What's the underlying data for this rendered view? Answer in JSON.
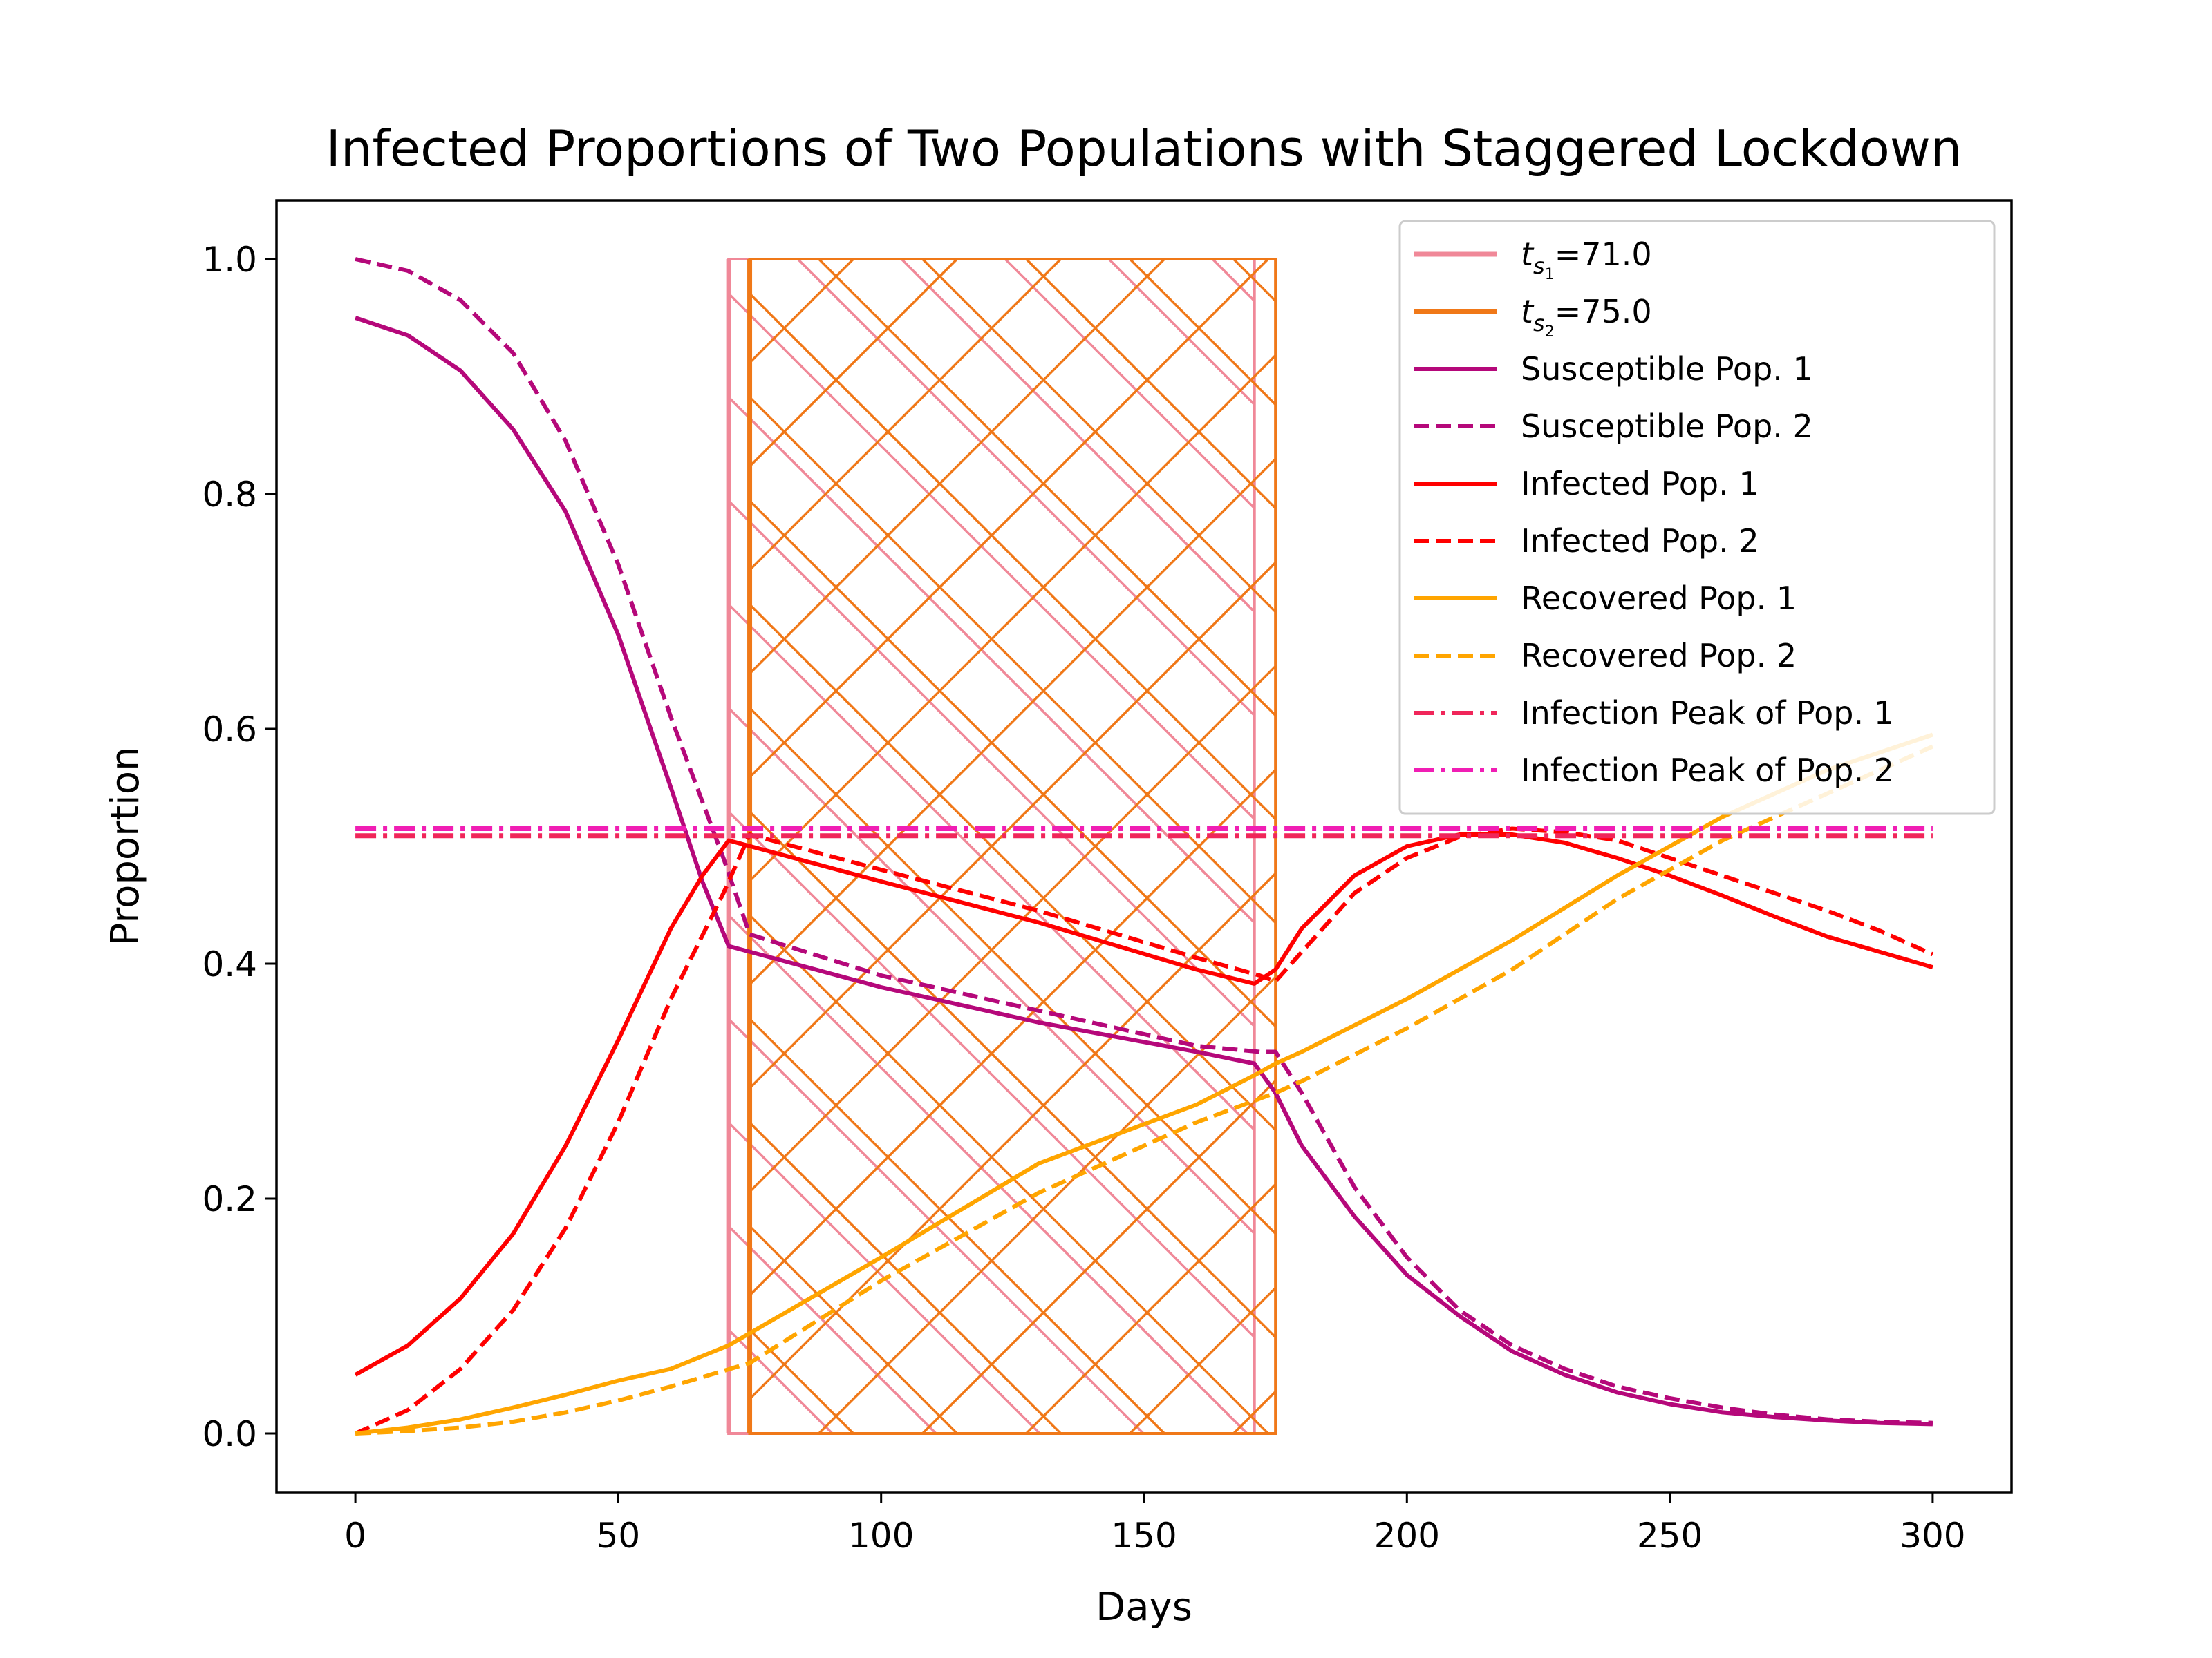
{
  "chart_data": {
    "type": "line",
    "title": "Infected Proportions of Two Populations with Staggered Lockdown",
    "xlabel": "Days",
    "ylabel": "Proportion",
    "xlim": [
      -15,
      315
    ],
    "ylim": [
      -0.05,
      1.05
    ],
    "xticks": [
      0,
      50,
      100,
      150,
      200,
      250,
      300
    ],
    "yticks": [
      0.0,
      0.2,
      0.4,
      0.6,
      0.8,
      1.0
    ],
    "grid": false,
    "legend_position": "top-right",
    "lockdowns": [
      {
        "label_base": "t",
        "label_sub": "s",
        "label_subsub": "1",
        "label_value": "=71.0",
        "start": 71,
        "end": 171,
        "color": "#f08898",
        "hatch": "diagonal-down"
      },
      {
        "label_base": "t",
        "label_sub": "s",
        "label_subsub": "2",
        "label_value": "=75.0",
        "start": 75,
        "end": 175,
        "color": "#f07818",
        "hatch": "crosshatch"
      }
    ],
    "series": [
      {
        "name": "Susceptible Pop. 1",
        "color": "#b5087a",
        "dash": "solid",
        "x": [
          0,
          10,
          20,
          30,
          40,
          50,
          60,
          66,
          71,
          100,
          130,
          160,
          171,
          175,
          180,
          190,
          200,
          210,
          220,
          230,
          240,
          250,
          260,
          270,
          280,
          290,
          300
        ],
        "y": [
          0.95,
          0.935,
          0.905,
          0.855,
          0.785,
          0.68,
          0.55,
          0.47,
          0.415,
          0.38,
          0.35,
          0.325,
          0.315,
          0.29,
          0.245,
          0.185,
          0.135,
          0.1,
          0.07,
          0.05,
          0.035,
          0.025,
          0.018,
          0.014,
          0.011,
          0.009,
          0.008
        ]
      },
      {
        "name": "Susceptible Pop. 2",
        "color": "#b5087a",
        "dash": "dashed",
        "x": [
          0,
          10,
          20,
          30,
          40,
          50,
          60,
          70,
          75,
          100,
          130,
          160,
          172,
          175,
          180,
          190,
          200,
          210,
          220,
          230,
          240,
          250,
          260,
          270,
          280,
          290,
          300
        ],
        "y": [
          1.0,
          0.99,
          0.965,
          0.92,
          0.845,
          0.74,
          0.61,
          0.49,
          0.425,
          0.39,
          0.36,
          0.33,
          0.325,
          0.325,
          0.29,
          0.21,
          0.15,
          0.105,
          0.075,
          0.055,
          0.04,
          0.03,
          0.022,
          0.016,
          0.012,
          0.01,
          0.009
        ]
      },
      {
        "name": "Infected Pop. 1",
        "color": "#ff0000",
        "dash": "solid",
        "x": [
          0,
          10,
          20,
          30,
          40,
          50,
          60,
          66,
          71,
          100,
          130,
          160,
          171,
          175,
          180,
          190,
          200,
          210,
          220,
          230,
          240,
          250,
          260,
          270,
          280,
          290,
          300
        ],
        "y": [
          0.05,
          0.075,
          0.115,
          0.17,
          0.245,
          0.335,
          0.43,
          0.475,
          0.505,
          0.47,
          0.435,
          0.395,
          0.383,
          0.395,
          0.43,
          0.475,
          0.5,
          0.51,
          0.51,
          0.503,
          0.49,
          0.475,
          0.458,
          0.44,
          0.423,
          0.41,
          0.397
        ]
      },
      {
        "name": "Infected Pop. 2",
        "color": "#ff0000",
        "dash": "dashed",
        "x": [
          0,
          10,
          20,
          30,
          40,
          50,
          60,
          70,
          75,
          100,
          130,
          160,
          172,
          175,
          180,
          190,
          200,
          210,
          220,
          230,
          240,
          250,
          260,
          270,
          280,
          290,
          300
        ],
        "y": [
          0.0,
          0.02,
          0.055,
          0.105,
          0.175,
          0.265,
          0.37,
          0.46,
          0.51,
          0.48,
          0.445,
          0.405,
          0.39,
          0.385,
          0.41,
          0.46,
          0.49,
          0.508,
          0.515,
          0.512,
          0.505,
          0.49,
          0.475,
          0.46,
          0.445,
          0.428,
          0.408
        ]
      },
      {
        "name": "Recovered Pop. 1",
        "color": "#ffa500",
        "dash": "solid",
        "x": [
          0,
          10,
          20,
          30,
          40,
          50,
          60,
          71,
          100,
          130,
          160,
          171,
          175,
          180,
          200,
          220,
          240,
          260,
          280,
          300
        ],
        "y": [
          0.0,
          0.005,
          0.012,
          0.022,
          0.033,
          0.045,
          0.055,
          0.075,
          0.15,
          0.23,
          0.28,
          0.305,
          0.315,
          0.325,
          0.37,
          0.42,
          0.475,
          0.525,
          0.565,
          0.595
        ]
      },
      {
        "name": "Recovered Pop. 2",
        "color": "#ffa500",
        "dash": "dashed",
        "x": [
          0,
          10,
          20,
          30,
          40,
          50,
          60,
          75,
          100,
          130,
          160,
          172,
          175,
          180,
          200,
          220,
          240,
          260,
          280,
          300
        ],
        "y": [
          0.0,
          0.002,
          0.005,
          0.01,
          0.018,
          0.028,
          0.04,
          0.06,
          0.13,
          0.205,
          0.265,
          0.285,
          0.29,
          0.3,
          0.345,
          0.395,
          0.455,
          0.505,
          0.545,
          0.585
        ]
      },
      {
        "name": "Infection Peak of Pop. 1",
        "color": "#f0265a",
        "dash": "dashdot",
        "x": [
          0,
          300
        ],
        "y": [
          0.509,
          0.509
        ]
      },
      {
        "name": "Infection Peak of Pop. 2",
        "color": "#f01eb4",
        "dash": "dashdot",
        "x": [
          0,
          300
        ],
        "y": [
          0.515,
          0.515
        ]
      }
    ]
  }
}
